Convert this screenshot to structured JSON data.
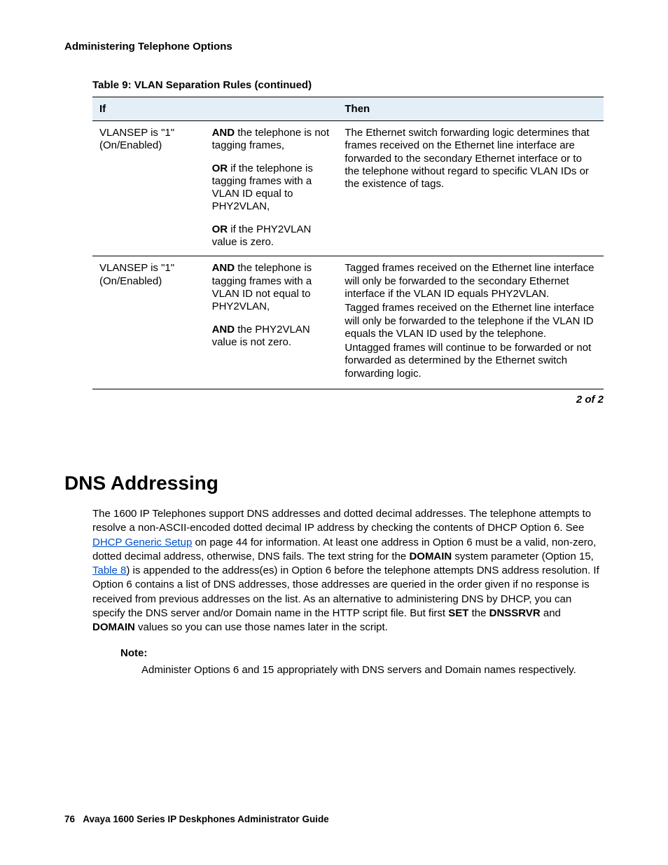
{
  "header": {
    "section_title": "Administering Telephone Options"
  },
  "table": {
    "title": "Table 9: VLAN Separation Rules (continued)",
    "columns": {
      "if": "If",
      "then": "Then"
    },
    "rows": [
      {
        "if_text": "VLANSEP is \"1\" (On/Enabled)",
        "conds": [
          {
            "lead": "AND",
            "rest": " the telephone is not tagging frames,"
          },
          {
            "lead": "OR",
            "rest": " if the telephone is tagging frames with a VLAN ID equal to PHY2VLAN,"
          },
          {
            "lead": "OR",
            "rest": " if the PHY2VLAN value is zero."
          }
        ],
        "then": [
          "The Ethernet switch forwarding logic determines that frames received on the Ethernet line interface are forwarded to the secondary Ethernet interface or to the telephone without regard to specific VLAN IDs or the existence of tags."
        ]
      },
      {
        "if_text": "VLANSEP is \"1\" (On/Enabled)",
        "conds": [
          {
            "lead": "AND",
            "rest": " the telephone is tagging frames with a VLAN ID not equal to PHY2VLAN,"
          },
          {
            "lead": "AND",
            "rest": " the PHY2VLAN value is not zero."
          }
        ],
        "then": [
          "Tagged frames received on the Ethernet line interface will only be forwarded to the secondary Ethernet interface if the VLAN ID equals PHY2VLAN.",
          "Tagged frames received on the Ethernet line interface will only be forwarded to the telephone if the VLAN ID equals the VLAN ID used by the telephone.",
          "Untagged frames will continue to be forwarded or not forwarded as determined by the Ethernet switch forwarding logic."
        ]
      }
    ],
    "pager": "2 of 2"
  },
  "section": {
    "heading": "DNS Addressing",
    "p1a": "The 1600 IP Telephones support DNS addresses and dotted decimal addresses. The telephone attempts to resolve a non-ASCII-encoded dotted decimal IP address by checking the contents of DHCP Option 6. See ",
    "link1": "DHCP Generic Setup",
    "p1b": " on page 44 for information. At least one address in Option 6 must be a valid, non-zero, dotted decimal address, otherwise, DNS fails. The text string for the ",
    "bold1": "DOMAIN",
    "p1c": " system parameter (Option 15, ",
    "link2": "Table 8",
    "p1d": ") is appended to the address(es) in Option 6 before the telephone attempts DNS address resolution. If Option 6 contains a list of DNS addresses, those addresses are queried in the order given if no response is received from previous addresses on the list. As an alternative to administering DNS by DHCP, you can specify the DNS server and/or Domain name in the HTTP script file. But first ",
    "bold2": "SET",
    "p1e": " the ",
    "bold3": "DNSSRVR",
    "p1f": " and ",
    "bold4": "DOMAIN",
    "p1g": " values so you can use those names later in the script.",
    "note_label": "Note:",
    "note_body": "Administer Options 6 and 15 appropriately with DNS servers and Domain names respectively."
  },
  "footer": {
    "page_no": "76",
    "doc_title": "Avaya 1600 Series IP Deskphones Administrator Guide"
  }
}
